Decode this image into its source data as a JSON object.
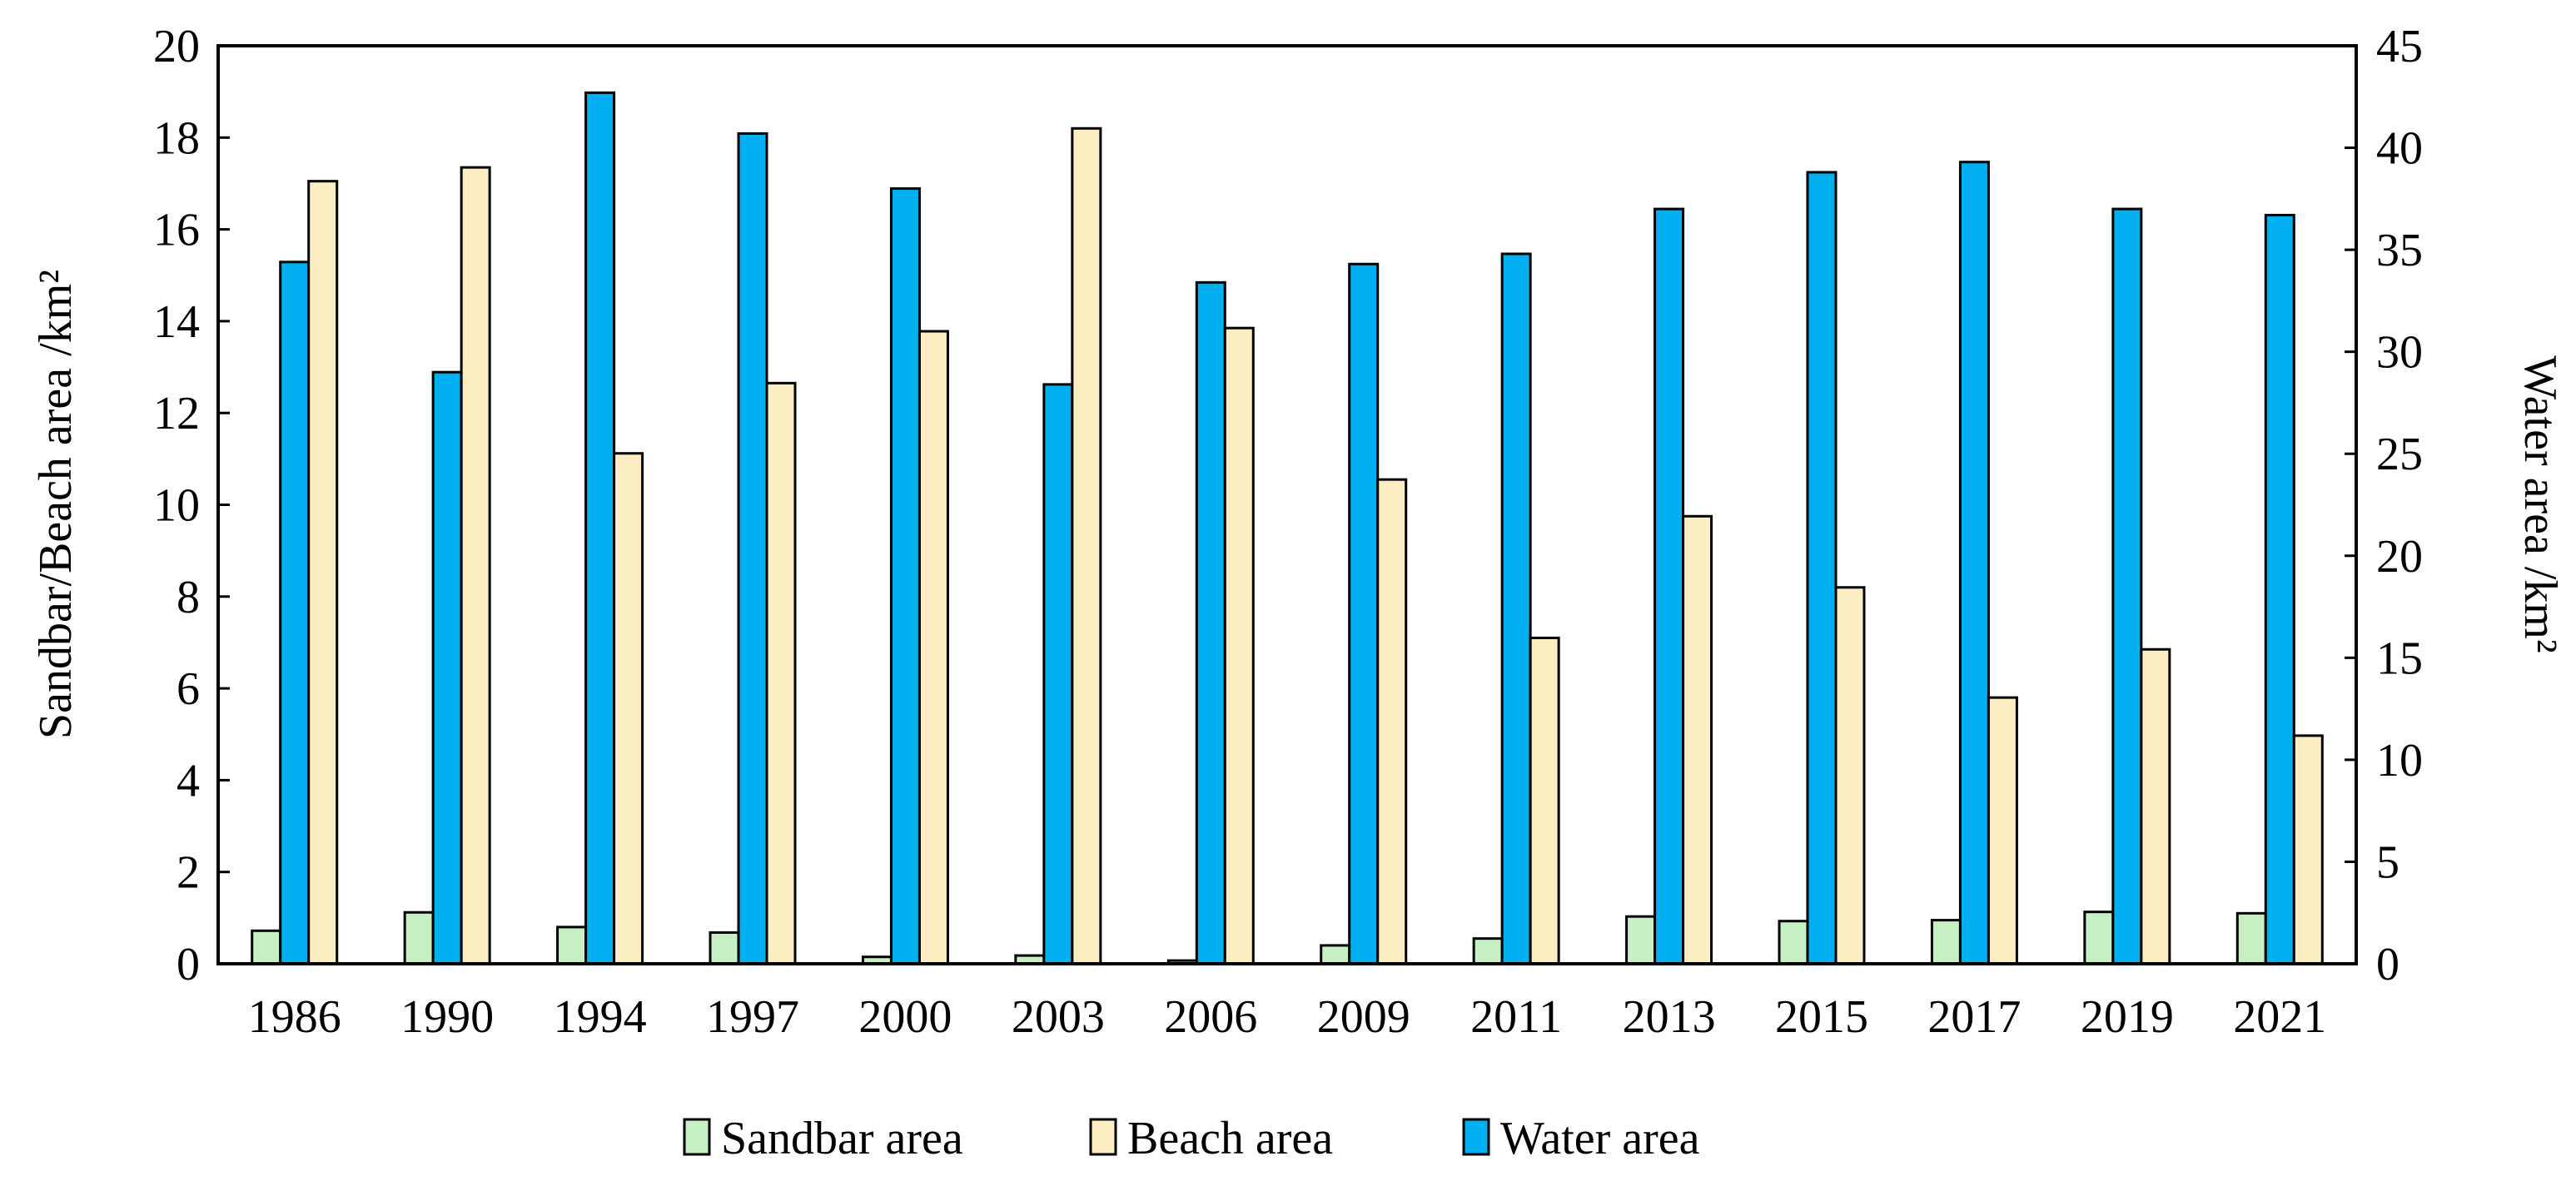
{
  "chart_data": {
    "type": "bar",
    "categories": [
      "1986",
      "1990",
      "1994",
      "1997",
      "2000",
      "2003",
      "2006",
      "2009",
      "2011",
      "2013",
      "2015",
      "2017",
      "2019",
      "2021"
    ],
    "series": [
      {
        "name": "Sandbar area",
        "axis": "left",
        "color": "#c6efc4",
        "values": [
          0.72,
          1.12,
          0.8,
          0.68,
          0.15,
          0.18,
          0.07,
          0.4,
          0.55,
          1.03,
          0.93,
          0.95,
          1.13,
          1.1
        ]
      },
      {
        "name": "Water area",
        "axis": "right",
        "color": "#00b0f0",
        "values": [
          34.4,
          29.0,
          42.7,
          40.7,
          38.0,
          28.4,
          33.4,
          34.3,
          34.8,
          37.0,
          38.8,
          39.3,
          37.0,
          36.7
        ]
      },
      {
        "name": "Beach area",
        "axis": "right-of-water",
        "axis_ref": "left",
        "color": "#fdedc2",
        "values": [
          17.05,
          17.35,
          11.12,
          12.65,
          13.78,
          18.2,
          13.85,
          10.55,
          7.1,
          9.75,
          8.2,
          5.8,
          6.85,
          4.97
        ]
      }
    ],
    "left_axis": {
      "label": "Sandbar/Beach area /km²",
      "min": 0,
      "max": 20,
      "ticks": [
        "0",
        "2",
        "4",
        "6",
        "8",
        "10",
        "12",
        "14",
        "16",
        "18",
        "20"
      ]
    },
    "right_axis": {
      "label": "Water area /km²",
      "min": 0,
      "max": 45,
      "ticks": [
        "0",
        "5",
        "10",
        "15",
        "20",
        "25",
        "30",
        "35",
        "40",
        "45"
      ]
    },
    "legend": {
      "position": "bottom",
      "items": [
        {
          "label": "Sandbar area",
          "color": "#c6efc4"
        },
        {
          "label": "Beach area",
          "color": "#fdedc2"
        },
        {
          "label": "Water area",
          "color": "#00b0f0"
        }
      ]
    },
    "grid": false
  }
}
